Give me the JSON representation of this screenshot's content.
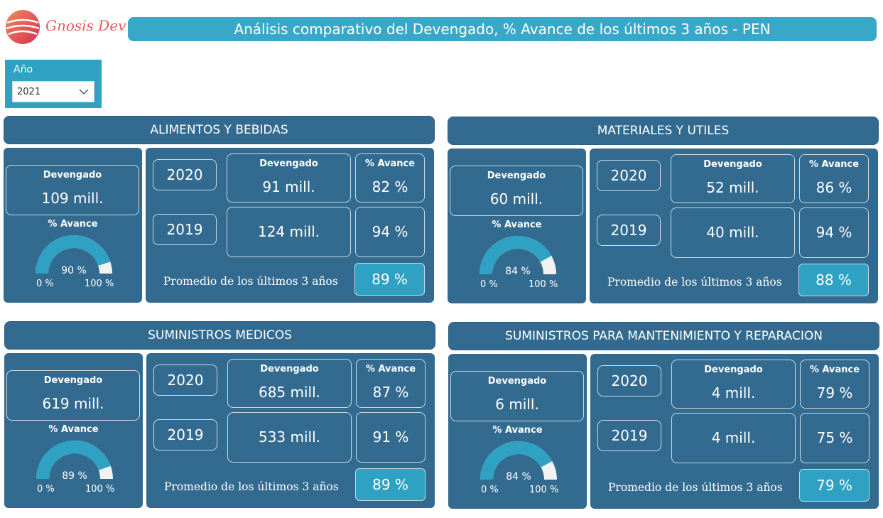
{
  "logo": {
    "text": "Gnosis Dev"
  },
  "title": "Análisis comparativo del Devengado, % Avance de los últimos 3 años - PEN",
  "slicer": {
    "label": "Año",
    "selected": "2021"
  },
  "labels": {
    "devengado": "Devengado",
    "avance": "% Avance",
    "gauge_min": "0 %",
    "gauge_max": "100 %",
    "promedio": "Promedio de los últimos 3 años"
  },
  "colors": {
    "panel": "#336b90",
    "accent": "#2fa1c2",
    "title_bar": "#39a7c7",
    "gauge_fill": "#2fa1c2",
    "gauge_track": "#f2f2f2"
  },
  "sections": [
    {
      "title": "ALIMENTOS Y BEBIDAS",
      "devengado": "109 mill.",
      "avance_text": "90 %",
      "avance_fraction": 0.9,
      "rows": [
        {
          "year": "2020",
          "devengado": "91 mill.",
          "avance": "82 %"
        },
        {
          "year": "2019",
          "devengado": "124 mill.",
          "avance": "94 %"
        }
      ],
      "promedio": "89 %"
    },
    {
      "title": "MATERIALES Y  UTILES",
      "devengado": "60 mill.",
      "avance_text": "84 %",
      "avance_fraction": 0.84,
      "rows": [
        {
          "year": "2020",
          "devengado": "52 mill.",
          "avance": "86 %"
        },
        {
          "year": "2019",
          "devengado": "40 mill.",
          "avance": "94 %"
        }
      ],
      "promedio": "88 %"
    },
    {
      "title": "SUMINISTROS MEDICOS",
      "devengado": "619 mill.",
      "avance_text": "89 %",
      "avance_fraction": 0.89,
      "rows": [
        {
          "year": "2020",
          "devengado": "685 mill.",
          "avance": "87 %"
        },
        {
          "year": "2019",
          "devengado": "533 mill.",
          "avance": "91 %"
        }
      ],
      "promedio": "89 %"
    },
    {
      "title": "SUMINISTROS PARA MANTENIMIENTO Y REPARACION",
      "devengado": "6 mill.",
      "avance_text": "84 %",
      "avance_fraction": 0.84,
      "rows": [
        {
          "year": "2020",
          "devengado": "4 mill.",
          "avance": "79 %"
        },
        {
          "year": "2019",
          "devengado": "4 mill.",
          "avance": "75 %"
        }
      ],
      "promedio": "79 %"
    }
  ]
}
